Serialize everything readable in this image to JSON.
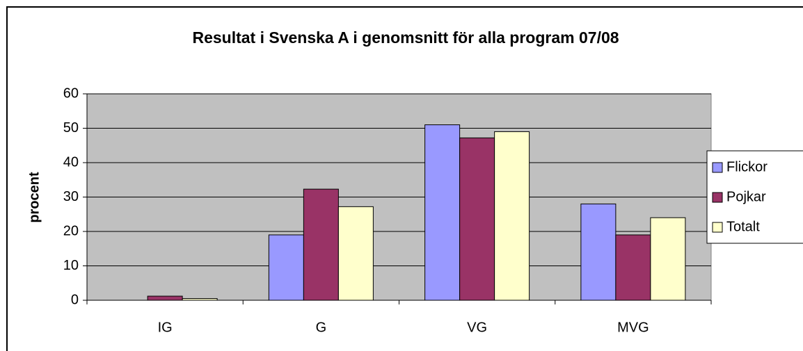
{
  "chart_data": {
    "type": "bar",
    "title": "Resultat i Svenska A i genomsnitt för alla program 07/08",
    "y_label": "procent",
    "categories": [
      "IG",
      "G",
      "VG",
      "MVG"
    ],
    "series": [
      {
        "name": "Flickor",
        "color": "#9999ff",
        "values": [
          0,
          19,
          51,
          28
        ]
      },
      {
        "name": "Pojkar",
        "color": "#993366",
        "values": [
          1.2,
          32.3,
          47.2,
          19
        ]
      },
      {
        "name": "Totalt",
        "color": "#ffffcc",
        "values": [
          0.5,
          27.2,
          49,
          24
        ]
      }
    ],
    "ylim": [
      0,
      60
    ],
    "yticks": [
      0,
      10,
      20,
      30,
      40,
      50,
      60
    ],
    "grid": true,
    "legend": "right"
  }
}
